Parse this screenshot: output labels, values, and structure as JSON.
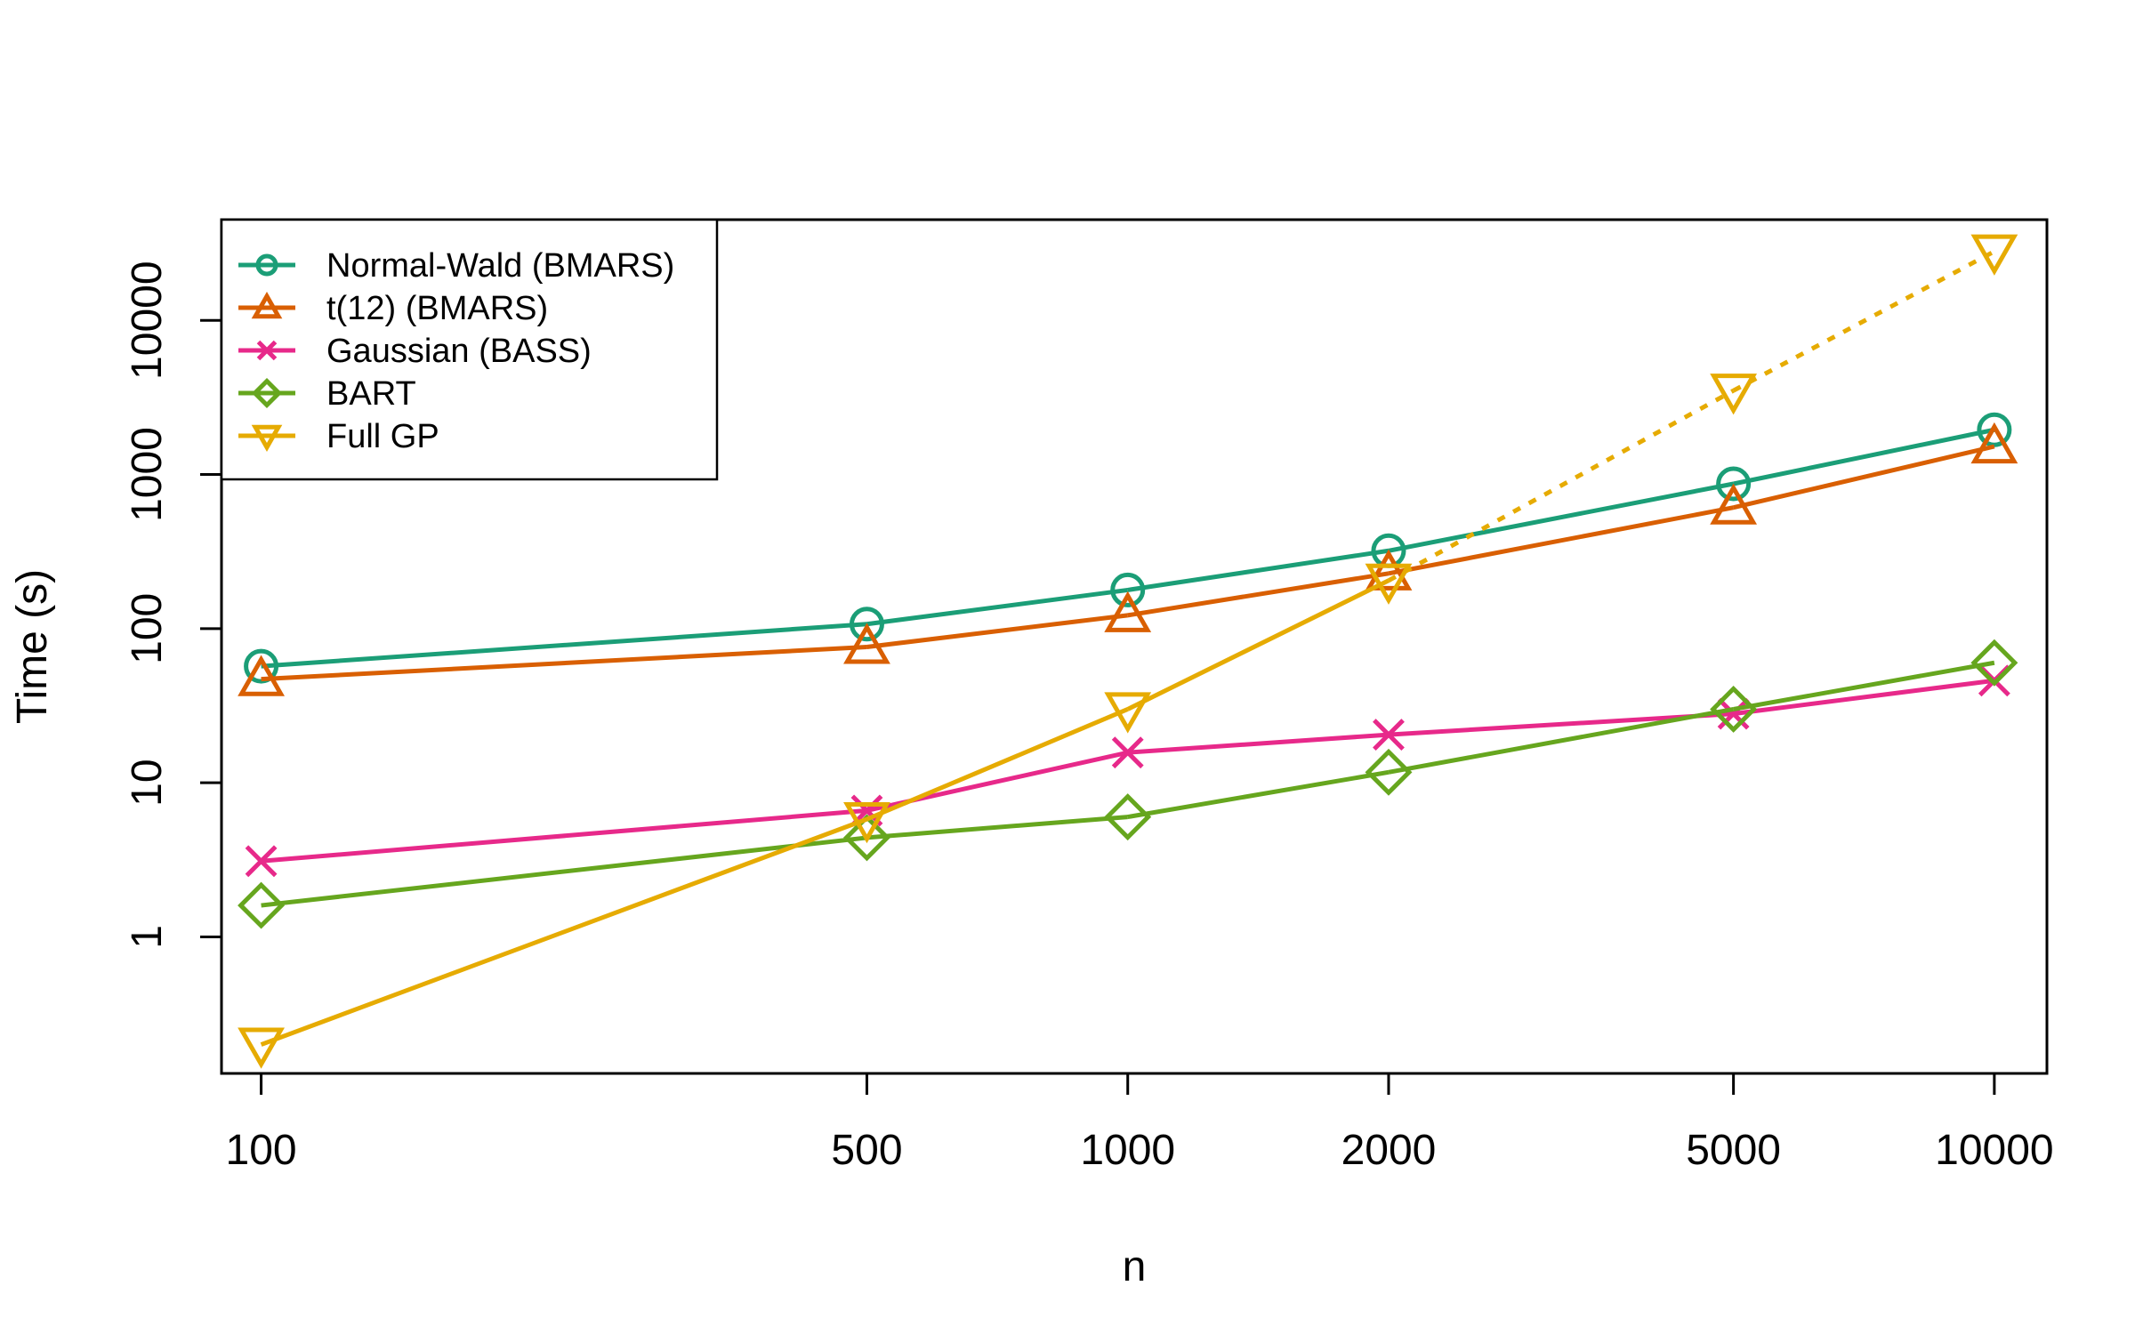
{
  "chart_data": {
    "type": "line",
    "xlabel": "n",
    "ylabel": "Time (s)",
    "x_scale": "log",
    "y_scale": "log",
    "x": [
      100,
      500,
      1000,
      2000,
      5000,
      10000
    ],
    "x_tick_labels": [
      "100",
      "500",
      "1000",
      "2000",
      "5000",
      "10000"
    ],
    "y_ticks": [
      1,
      10,
      100,
      1000,
      10000
    ],
    "y_tick_labels": [
      "1",
      "10",
      "100",
      "1000",
      "10000"
    ],
    "xlim": [
      90,
      11500
    ],
    "ylim": [
      0.13,
      45000
    ],
    "grid": false,
    "legend_position": "top-left",
    "series": [
      {
        "name": "Normal-Wald (BMARS)",
        "color": "#1b9e77",
        "marker": "circle",
        "values": [
          57,
          107,
          178,
          320,
          870,
          1950
        ]
      },
      {
        "name": "t(12) (BMARS)",
        "color": "#d95f02",
        "marker": "triangle",
        "values": [
          47,
          76,
          122,
          228,
          610,
          1520
        ]
      },
      {
        "name": "Gaussian (BASS)",
        "color": "#e7298a",
        "marker": "x",
        "values": [
          3.1,
          6.6,
          15.7,
          20.5,
          28,
          46
        ]
      },
      {
        "name": "BART",
        "color": "#66a61e",
        "marker": "diamond",
        "values": [
          1.6,
          4.4,
          6.0,
          11.7,
          30,
          60
        ]
      },
      {
        "name": "Full GP",
        "color": "#e6ab02",
        "marker": "triangle-down",
        "values": [
          0.2,
          5.8,
          30,
          205,
          3500,
          28000
        ],
        "observed_up_to": 2000,
        "extrapolated_style": "dotted"
      }
    ]
  }
}
